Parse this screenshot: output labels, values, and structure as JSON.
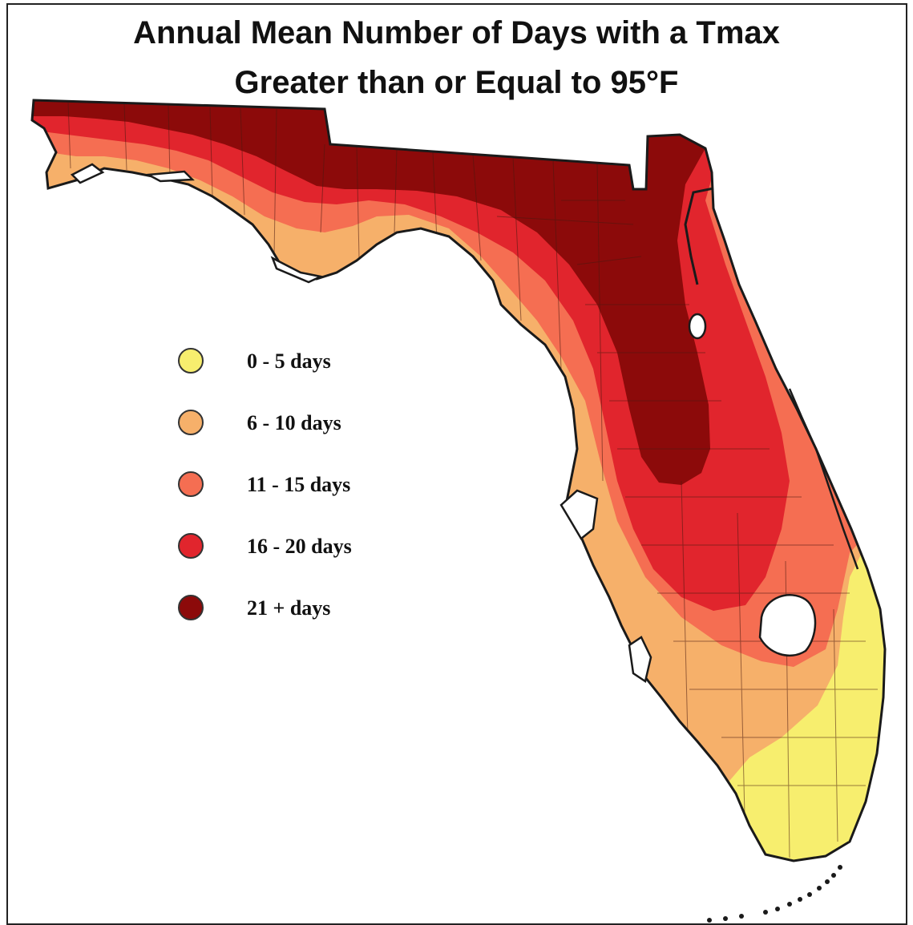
{
  "title": {
    "line1": "Annual Mean Number of Days with a Tmax",
    "line2": "Greater than or Equal to 95°F"
  },
  "legend": [
    {
      "label": "0 - 5 days",
      "color": "#f7ee6e"
    },
    {
      "label": "6 - 10 days",
      "color": "#f6b06a"
    },
    {
      "label": "11 - 15 days",
      "color": "#f56e52"
    },
    {
      "label": "16 - 20 days",
      "color": "#e1252d"
    },
    {
      "label": "21 + days",
      "color": "#8c0a0a"
    }
  ],
  "colors": {
    "outline": "#1a1a1a",
    "county_lines": "#4a1a10",
    "water": "#ffffff"
  }
}
